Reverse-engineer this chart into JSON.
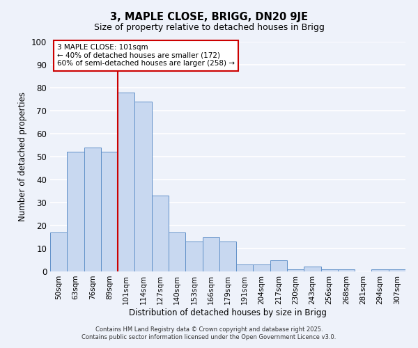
{
  "title": "3, MAPLE CLOSE, BRIGG, DN20 9JE",
  "subtitle": "Size of property relative to detached houses in Brigg",
  "xlabel": "Distribution of detached houses by size in Brigg",
  "ylabel": "Number of detached properties",
  "categories": [
    "50sqm",
    "63sqm",
    "76sqm",
    "89sqm",
    "101sqm",
    "114sqm",
    "127sqm",
    "140sqm",
    "153sqm",
    "166sqm",
    "179sqm",
    "191sqm",
    "204sqm",
    "217sqm",
    "230sqm",
    "243sqm",
    "256sqm",
    "268sqm",
    "281sqm",
    "294sqm",
    "307sqm"
  ],
  "values": [
    17,
    52,
    54,
    52,
    78,
    74,
    33,
    17,
    13,
    15,
    13,
    3,
    3,
    5,
    1,
    2,
    1,
    1,
    0,
    1,
    1
  ],
  "bar_color": "#c8d8f0",
  "bar_edge_color": "#6090c8",
  "bar_width": 1.0,
  "ylim": [
    0,
    100
  ],
  "yticks": [
    0,
    10,
    20,
    30,
    40,
    50,
    60,
    70,
    80,
    90,
    100
  ],
  "vline_index": 4,
  "vline_color": "#cc0000",
  "annotation_title": "3 MAPLE CLOSE: 101sqm",
  "annotation_line1": "← 40% of detached houses are smaller (172)",
  "annotation_line2": "60% of semi-detached houses are larger (258) →",
  "annotation_box_color": "#ffffff",
  "annotation_box_edge": "#cc0000",
  "background_color": "#eef2fa",
  "grid_color": "#ffffff",
  "footer1": "Contains HM Land Registry data © Crown copyright and database right 2025.",
  "footer2": "Contains public sector information licensed under the Open Government Licence v3.0."
}
